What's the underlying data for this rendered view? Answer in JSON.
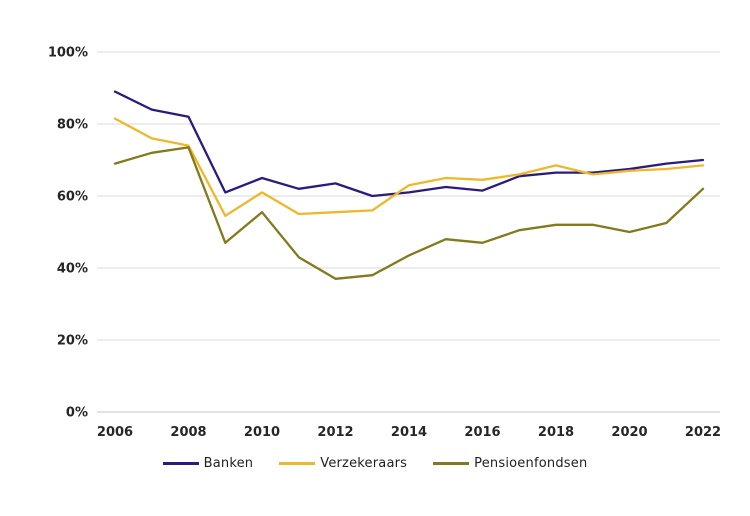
{
  "chart_data": {
    "type": "line",
    "title": "",
    "xlabel": "",
    "ylabel": "",
    "x": [
      2006,
      2007,
      2008,
      2009,
      2010,
      2011,
      2012,
      2013,
      2014,
      2015,
      2016,
      2017,
      2018,
      2019,
      2020,
      2021,
      2022
    ],
    "x_tick_labels": [
      "2006",
      "2008",
      "2010",
      "2012",
      "2014",
      "2016",
      "2018",
      "2020",
      "2022"
    ],
    "y_ticks": [
      0,
      20,
      40,
      60,
      80,
      100
    ],
    "y_tick_labels": [
      "0%",
      "20%",
      "40%",
      "60%",
      "80%",
      "100%"
    ],
    "ylim": [
      0,
      100
    ],
    "grid": "horizontal",
    "legend_position": "bottom",
    "series": [
      {
        "name": "Banken",
        "color": "#2b1b80",
        "values": [
          89,
          84,
          82,
          61,
          65,
          62,
          63.5,
          60,
          61,
          62.5,
          61.5,
          65.5,
          66.5,
          66.5,
          67.5,
          69,
          70
        ]
      },
      {
        "name": "Verzekeraars",
        "color": "#edb829",
        "values": [
          81.5,
          76,
          74,
          54.5,
          61,
          55,
          55.5,
          56,
          63,
          65,
          64.5,
          66,
          68.5,
          66,
          67,
          67.5,
          68.5
        ]
      },
      {
        "name": "Pensioenfondsen",
        "color": "#827a1b",
        "values": [
          69,
          72,
          73.5,
          47,
          55.5,
          43,
          37,
          38,
          43.5,
          48,
          47,
          50.5,
          52,
          52,
          50,
          52.5,
          62
        ]
      }
    ]
  },
  "colors": {
    "gridline": "#d9d9d9",
    "baseline": "#c6c6c6",
    "tick_text": "#262626"
  }
}
